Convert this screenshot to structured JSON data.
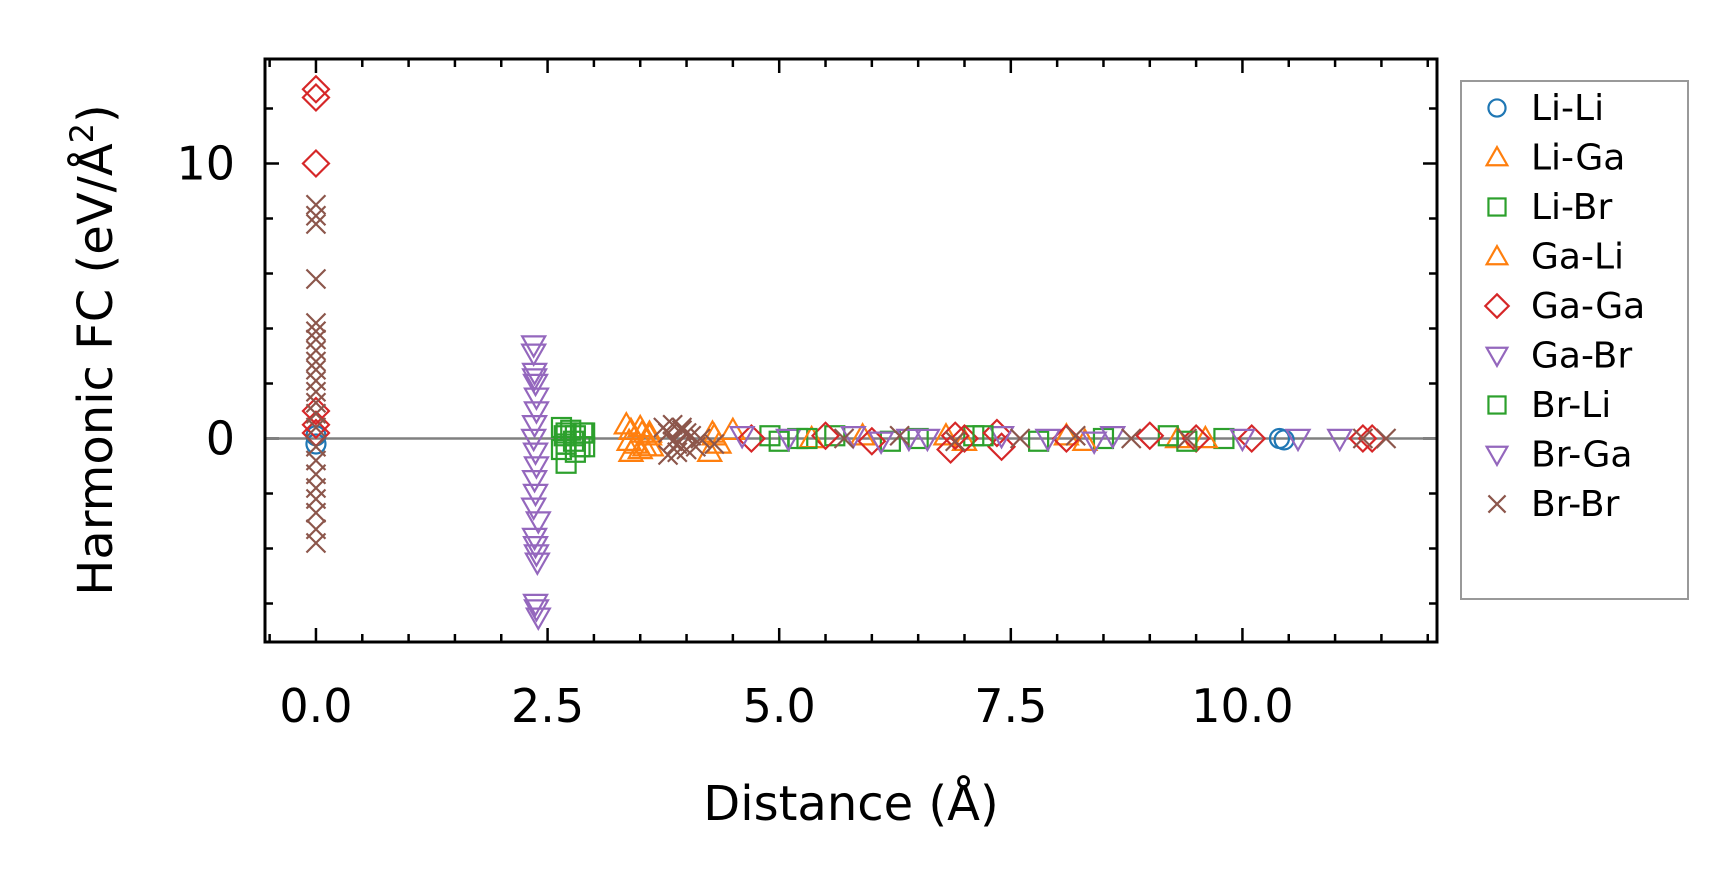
{
  "chart_data": {
    "type": "scatter",
    "title": "",
    "xlabel": "Distance (Å)",
    "ylabel": "Harmonic FC (eV/Å²)",
    "xlim": [
      -0.55,
      12.1
    ],
    "ylim": [
      -7.4,
      13.8
    ],
    "xticks": [
      0.0,
      2.5,
      5.0,
      7.5,
      10.0
    ],
    "xtick_labels": [
      "0.0",
      "2.5",
      "5.0",
      "7.5",
      "10.0"
    ],
    "yticks": [
      0,
      10
    ],
    "ytick_labels": [
      "0",
      "10"
    ],
    "reference_line_y": 0,
    "grid": false,
    "legend_position": "outside-right",
    "series": [
      {
        "name": "Li-Li",
        "color": "#1f77b4",
        "marker": "circle",
        "x": [
          0.0,
          0.0,
          10.4,
          10.45
        ],
        "y": [
          0.1,
          -0.2,
          0.0,
          -0.05
        ]
      },
      {
        "name": "Li-Ga",
        "color": "#ff7f0e",
        "marker": "triangle-up",
        "x": [
          3.35,
          3.4,
          3.45,
          3.5,
          3.55,
          3.6,
          3.4,
          3.5,
          3.6,
          4.25,
          4.3,
          4.35,
          4.5,
          5.9,
          7.0,
          8.1,
          9.3
        ],
        "y": [
          0.5,
          0.3,
          -0.2,
          0.4,
          -0.3,
          0.2,
          -0.5,
          -0.4,
          0.1,
          -0.5,
          0.1,
          -0.2,
          0.3,
          0.1,
          -0.1,
          0.1,
          0.0
        ]
      },
      {
        "name": "Li-Br",
        "color": "#2ca02c",
        "marker": "square",
        "x": [
          2.65,
          2.7,
          2.75,
          2.8,
          2.85,
          2.9,
          2.65,
          2.7,
          2.8,
          2.9,
          2.7,
          4.9,
          5.0,
          5.2,
          5.6,
          6.2,
          6.5,
          7.1,
          7.8,
          8.5,
          9.2,
          9.8
        ],
        "y": [
          0.4,
          0.2,
          0.3,
          0.1,
          -0.3,
          0.2,
          -0.4,
          -0.2,
          -0.5,
          -0.3,
          -0.9,
          0.1,
          -0.1,
          0.0,
          0.1,
          -0.1,
          0.0,
          0.1,
          -0.1,
          0.0,
          0.1,
          0.0
        ]
      },
      {
        "name": "Ga-Li",
        "color": "#ff7f0e",
        "marker": "triangle-up",
        "x": [
          3.38,
          3.52,
          3.62,
          4.28,
          5.35,
          6.8,
          8.3,
          9.6
        ],
        "y": [
          -0.1,
          0.2,
          -0.3,
          0.2,
          0.0,
          0.1,
          -0.1,
          0.0
        ]
      },
      {
        "name": "Ga-Ga",
        "color": "#d62728",
        "marker": "diamond",
        "x": [
          0.0,
          0.0,
          0.0,
          0.0,
          0.0,
          0.0,
          4.7,
          5.5,
          6.0,
          6.9,
          6.85,
          7.0,
          7.35,
          7.4,
          8.1,
          9.0,
          9.5,
          10.1,
          11.3,
          11.4
        ],
        "y": [
          12.7,
          12.4,
          10.0,
          1.0,
          0.5,
          0.2,
          0.0,
          0.1,
          -0.1,
          0.1,
          -0.4,
          0.0,
          0.2,
          -0.3,
          0.0,
          0.1,
          0.0,
          0.0,
          0.0,
          0.0
        ]
      },
      {
        "name": "Ga-Br",
        "color": "#9467bd",
        "marker": "triangle-down",
        "x": [
          2.35,
          2.35,
          2.36,
          2.37,
          2.38,
          2.38,
          2.36,
          2.35,
          2.37,
          2.38,
          2.36,
          2.37,
          2.35,
          2.4,
          4.6,
          5.1,
          5.8,
          6.1,
          6.4,
          7.4,
          7.9,
          8.4,
          10.6,
          11.05
        ],
        "y": [
          3.4,
          3.1,
          2.4,
          2.0,
          1.5,
          1.0,
          0.5,
          0.0,
          -0.5,
          -1.0,
          -1.5,
          -2.0,
          -2.5,
          -3.0,
          0.1,
          0.0,
          0.1,
          -0.1,
          0.0,
          0.1,
          0.0,
          -0.1,
          0.0,
          0.0
        ]
      },
      {
        "name": "Br-Li",
        "color": "#2ca02c",
        "marker": "square",
        "x": [
          2.68,
          2.78,
          2.88,
          5.3,
          7.2,
          9.4
        ],
        "y": [
          0.1,
          -0.1,
          0.2,
          0.0,
          0.1,
          -0.1
        ]
      },
      {
        "name": "Br-Ga",
        "color": "#9467bd",
        "marker": "triangle-down",
        "x": [
          2.36,
          2.37,
          2.38,
          2.39,
          2.37,
          2.38,
          2.4,
          2.36,
          6.6,
          8.6,
          10.0
        ],
        "y": [
          -3.6,
          -3.9,
          -4.2,
          -4.5,
          -6.0,
          -6.2,
          -6.5,
          2.2,
          0.0,
          0.1,
          0.0
        ]
      },
      {
        "name": "Br-Br",
        "color": "#8c564b",
        "marker": "x",
        "x": [
          0.0,
          0.0,
          0.0,
          0.0,
          0.0,
          0.0,
          0.0,
          0.0,
          0.0,
          0.0,
          0.0,
          0.0,
          0.0,
          0.0,
          0.0,
          0.0,
          0.0,
          0.0,
          0.0,
          0.0,
          0.0,
          0.0,
          0.0,
          3.75,
          3.8,
          3.85,
          3.9,
          3.95,
          4.0,
          4.05,
          4.1,
          3.8,
          3.9,
          4.0,
          3.85,
          3.95,
          4.15,
          4.3,
          5.7,
          6.3,
          6.9,
          7.6,
          8.2,
          8.8,
          9.4,
          11.3,
          11.55
        ],
        "y": [
          8.5,
          8.1,
          7.8,
          5.8,
          4.2,
          3.9,
          3.6,
          3.2,
          2.8,
          2.5,
          2.1,
          1.7,
          1.3,
          0.9,
          0.4,
          -0.3,
          -0.8,
          -1.3,
          -1.8,
          -2.2,
          -2.7,
          -3.3,
          -3.8,
          0.4,
          0.2,
          0.5,
          -0.2,
          0.3,
          -0.4,
          0.1,
          -0.3,
          -0.6,
          -0.5,
          0.2,
          -0.1,
          0.4,
          0.0,
          -0.2,
          0.0,
          0.1,
          -0.1,
          0.0,
          0.1,
          0.0,
          0.0,
          0.0,
          0.0
        ]
      }
    ]
  }
}
